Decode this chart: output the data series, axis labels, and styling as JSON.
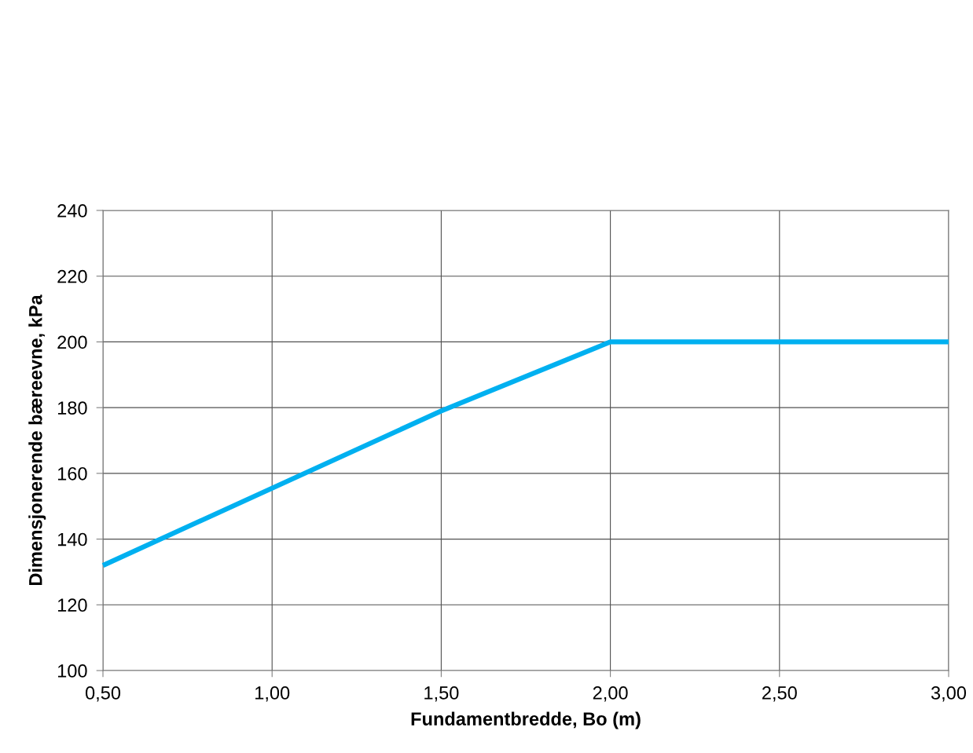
{
  "chart_data": {
    "type": "line",
    "xlabel": "Fundamentbredde, Bo (m)",
    "ylabel": "Dimensjonerende bæreevne, kPa",
    "x": [
      0.5,
      1.5,
      2.0,
      3.0
    ],
    "series": [
      {
        "color": "#00b0f0",
        "values": [
          132,
          179,
          200,
          200
        ]
      }
    ],
    "xlim": [
      0.5,
      3.0
    ],
    "xticks": [
      {
        "value": 0.5,
        "label": "0,50"
      },
      {
        "value": 1.0,
        "label": "1,00"
      },
      {
        "value": 1.5,
        "label": "1,50"
      },
      {
        "value": 2.0,
        "label": "2,00"
      },
      {
        "value": 2.5,
        "label": "2,50"
      },
      {
        "value": 3.0,
        "label": "3,00"
      }
    ],
    "ylim": [
      100,
      240
    ],
    "yticks": [
      100,
      120,
      140,
      160,
      180,
      200,
      220,
      240
    ],
    "grid": true,
    "marker": "none",
    "line_style": "solid"
  }
}
